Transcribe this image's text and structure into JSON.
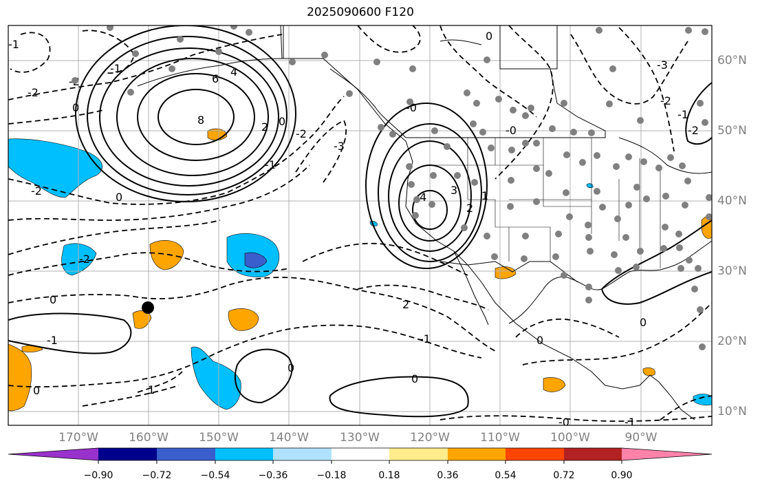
{
  "title": "2025090600 F120",
  "lon_labels": [
    "170°W",
    "160°W",
    "150°W",
    "140°W",
    "130°W",
    "120°W",
    "110°W",
    "100°W",
    "90°W"
  ],
  "lat_labels": [
    "60°N",
    "50°N",
    "40°N",
    "30°N",
    "20°N",
    "10°N"
  ],
  "colorbar": {
    "ticks": [
      "−0.90",
      "−0.72",
      "−0.54",
      "−0.36",
      "−0.18",
      "0.18",
      "0.36",
      "0.54",
      "0.72",
      "0.90"
    ],
    "colors": [
      "#9932cc",
      "#00008b",
      "#3a5fcd",
      "#00bfff",
      "#b0e2ff",
      "#ffffff",
      "#ffec8b",
      "#ffa500",
      "#ff4500",
      "#b22222",
      "#ff82ab"
    ]
  },
  "contour_labels": [
    "8",
    "6",
    "4",
    "2",
    "0",
    "-2",
    "-3",
    "-1",
    "0",
    "4",
    "3",
    "2",
    "1",
    "-2",
    "0",
    "-1",
    "-2",
    "1",
    "0",
    "-1",
    "0",
    "0",
    "0",
    "-0",
    "-1",
    "2",
    "0",
    "-3",
    "-2",
    "-1",
    "-2",
    "-1",
    "0",
    "-0",
    "-2",
    "-2",
    "-1",
    "0",
    "-0"
  ],
  "map_features": {
    "projection": "PlateCarree",
    "extent": {
      "lon_min": -180,
      "lon_max": -80,
      "lat_min": 8,
      "lat_max": 65
    },
    "positive_contours": "solid",
    "negative_contours": "dashed",
    "stations": "gray dots",
    "marker": {
      "lon": -160,
      "lat": 24.6,
      "color": "#000000"
    }
  }
}
